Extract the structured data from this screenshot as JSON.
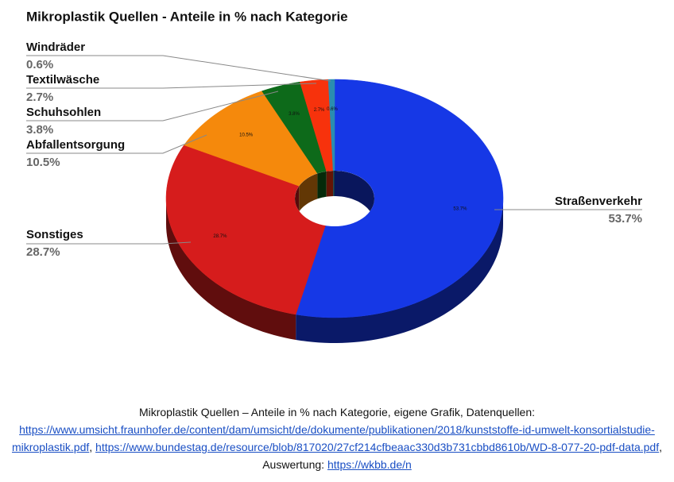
{
  "chart_data": {
    "type": "donut3d",
    "title": "Mikroplastik Quellen - Anteile in % nach Kategorie",
    "categories": [
      "Straßenverkehr",
      "Sonstiges",
      "Abfallentsorgung",
      "Schuhsohlen",
      "Textilwäsche",
      "Windräder"
    ],
    "values": [
      53.7,
      28.7,
      10.5,
      3.8,
      2.7,
      0.6
    ],
    "value_labels": [
      "53.7%",
      "28.7%",
      "10.5%",
      "3.8%",
      "2.7%",
      "0.6%"
    ],
    "colors": [
      "#1638e6",
      "#d61c1c",
      "#f5890c",
      "#0d6a1a",
      "#f7320c",
      "#2a8db0"
    ]
  },
  "caption": {
    "parts": [
      {
        "text": "Mikroplastik Quellen – Anteile in % nach Kategorie, eigene Grafik, Datenquellen: "
      },
      {
        "link": "https://www.umsicht.fraunhofer.de/content/dam/umsicht/de/dokumente/publikationen/2018/kunststoffe-id-umwelt-konsortialstudie-mikroplastik.pdf"
      },
      {
        "text": ", "
      },
      {
        "link": "https://www.bundestag.de/resource/blob/817020/27cf214cfbeaac330d3b731cbbd8610b/WD-8-077-20-pdf-data.pdf"
      },
      {
        "text": ", Auswertung: "
      },
      {
        "link": "https://wkbb.de/n"
      }
    ]
  }
}
